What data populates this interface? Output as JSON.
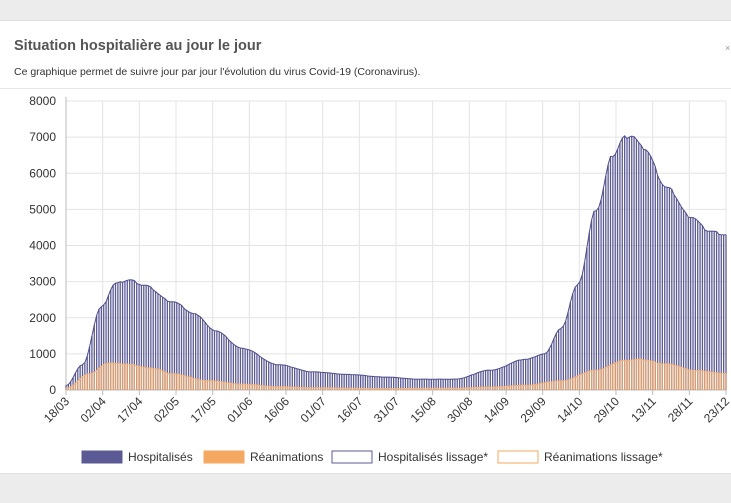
{
  "card": {
    "title": "Situation hospitalière au jour le jour",
    "subtitle": "Ce graphique permet de suivre jour par jour l'évolution du virus Covid-19 (Coronavirus)."
  },
  "colors": {
    "hosp": "#5b5a94",
    "rea": "#f5a862",
    "hosp_line": "#4f4e8a",
    "rea_line": "#f5b27a",
    "grid": "#e4e4e4"
  },
  "chart_data": {
    "type": "bar",
    "title": "",
    "xlabel": "",
    "ylabel": "",
    "ylim": [
      0,
      8000
    ],
    "yticks": [
      0,
      1000,
      2000,
      3000,
      4000,
      5000,
      6000,
      7000,
      8000
    ],
    "xticks": [
      "18/03",
      "02/04",
      "17/04",
      "02/05",
      "17/05",
      "01/06",
      "16/06",
      "01/07",
      "16/07",
      "31/07",
      "15/08",
      "30/08",
      "14/09",
      "29/09",
      "14/10",
      "29/10",
      "13/11",
      "28/11",
      "23/12"
    ],
    "x_start": "2020-03-18",
    "x_end": "2020-12-23",
    "legend": {
      "position": "bottom",
      "items": [
        {
          "label": "Hospitalisés",
          "type": "box-filled",
          "color": "#5b5a94"
        },
        {
          "label": "Réanimations",
          "type": "box-filled",
          "color": "#f5a862"
        },
        {
          "label": "Hospitalisés lissage*",
          "type": "box-outline",
          "color": "#5b5a94"
        },
        {
          "label": "Réanimations lissage*",
          "type": "box-outline",
          "color": "#f5a862"
        }
      ]
    },
    "series": [
      {
        "name": "Hospitalisés",
        "points": [
          [
            "2020-03-18",
            120
          ],
          [
            "2020-03-25",
            700
          ],
          [
            "2020-04-02",
            2300
          ],
          [
            "2020-04-08",
            2950
          ],
          [
            "2020-04-14",
            3050
          ],
          [
            "2020-04-20",
            2900
          ],
          [
            "2020-05-02",
            2450
          ],
          [
            "2020-05-12",
            2100
          ],
          [
            "2020-05-20",
            1650
          ],
          [
            "2020-06-01",
            1150
          ],
          [
            "2020-06-16",
            700
          ],
          [
            "2020-07-01",
            500
          ],
          [
            "2020-07-16",
            430
          ],
          [
            "2020-07-31",
            360
          ],
          [
            "2020-08-15",
            300
          ],
          [
            "2020-08-30",
            300
          ],
          [
            "2020-09-14",
            550
          ],
          [
            "2020-09-29",
            850
          ],
          [
            "2020-10-07",
            1000
          ],
          [
            "2020-10-14",
            1700
          ],
          [
            "2020-10-21",
            2900
          ],
          [
            "2020-10-29",
            5000
          ],
          [
            "2020-11-05",
            6500
          ],
          [
            "2020-11-10",
            7000
          ],
          [
            "2020-11-13",
            7050
          ],
          [
            "2020-11-18",
            6700
          ],
          [
            "2020-11-28",
            5600
          ],
          [
            "2020-12-08",
            4800
          ],
          [
            "2020-12-16",
            4400
          ],
          [
            "2020-12-23",
            4300
          ]
        ]
      },
      {
        "name": "Réanimations",
        "points": [
          [
            "2020-03-18",
            50
          ],
          [
            "2020-03-28",
            450
          ],
          [
            "2020-04-05",
            750
          ],
          [
            "2020-04-12",
            720
          ],
          [
            "2020-04-24",
            600
          ],
          [
            "2020-05-02",
            450
          ],
          [
            "2020-05-17",
            260
          ],
          [
            "2020-06-01",
            160
          ],
          [
            "2020-06-16",
            90
          ],
          [
            "2020-07-01",
            60
          ],
          [
            "2020-07-31",
            40
          ],
          [
            "2020-08-30",
            50
          ],
          [
            "2020-09-14",
            80
          ],
          [
            "2020-09-29",
            130
          ],
          [
            "2020-10-14",
            250
          ],
          [
            "2020-10-29",
            550
          ],
          [
            "2020-11-10",
            820
          ],
          [
            "2020-11-16",
            850
          ],
          [
            "2020-11-28",
            720
          ],
          [
            "2020-12-10",
            540
          ],
          [
            "2020-12-23",
            460
          ]
        ]
      }
    ]
  }
}
